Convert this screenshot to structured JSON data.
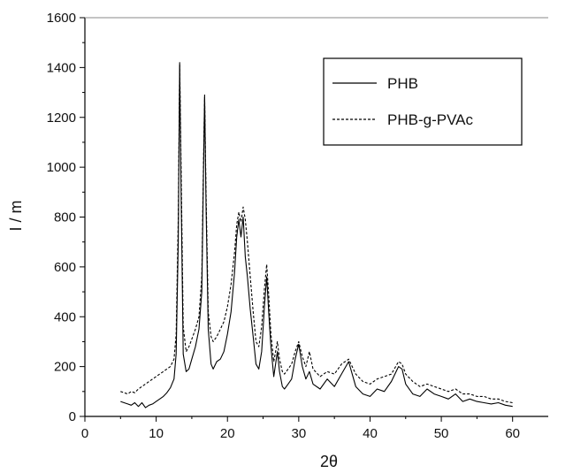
{
  "chart_data": {
    "type": "line",
    "xlabel": "2θ",
    "ylabel": "I / m",
    "xlim": [
      0,
      65
    ],
    "ylim": [
      0,
      1600
    ],
    "x_ticks": [
      0,
      10,
      20,
      30,
      40,
      50,
      60
    ],
    "y_ticks": [
      0,
      200,
      400,
      600,
      800,
      1000,
      1200,
      1400,
      1600
    ],
    "grid": false,
    "legend_position": "top-right",
    "series": [
      {
        "name": "PHB",
        "style": "solid",
        "color": "#000000",
        "points": [
          [
            5,
            60
          ],
          [
            5.5,
            55
          ],
          [
            6,
            50
          ],
          [
            6.5,
            45
          ],
          [
            7,
            55
          ],
          [
            7.5,
            40
          ],
          [
            8,
            55
          ],
          [
            8.5,
            35
          ],
          [
            9,
            45
          ],
          [
            9.5,
            50
          ],
          [
            10,
            60
          ],
          [
            10.5,
            70
          ],
          [
            11,
            80
          ],
          [
            11.5,
            95
          ],
          [
            12,
            115
          ],
          [
            12.5,
            150
          ],
          [
            12.8,
            250
          ],
          [
            13.1,
            700
          ],
          [
            13.3,
            1410
          ],
          [
            13.5,
            900
          ],
          [
            13.8,
            250
          ],
          [
            14.2,
            180
          ],
          [
            14.6,
            190
          ],
          [
            15,
            230
          ],
          [
            15.5,
            280
          ],
          [
            16,
            350
          ],
          [
            16.4,
            500
          ],
          [
            16.6,
            900
          ],
          [
            16.8,
            1290
          ],
          [
            17,
            850
          ],
          [
            17.3,
            350
          ],
          [
            17.7,
            210
          ],
          [
            18,
            190
          ],
          [
            18.5,
            220
          ],
          [
            19,
            230
          ],
          [
            19.5,
            260
          ],
          [
            20,
            330
          ],
          [
            20.5,
            420
          ],
          [
            21,
            580
          ],
          [
            21.3,
            720
          ],
          [
            21.6,
            790
          ],
          [
            21.9,
            720
          ],
          [
            22.2,
            800
          ],
          [
            22.5,
            640
          ],
          [
            22.8,
            560
          ],
          [
            23.2,
            430
          ],
          [
            23.6,
            320
          ],
          [
            24,
            210
          ],
          [
            24.4,
            190
          ],
          [
            24.8,
            260
          ],
          [
            25.2,
            450
          ],
          [
            25.5,
            560
          ],
          [
            25.8,
            410
          ],
          [
            26.1,
            280
          ],
          [
            26.5,
            160
          ],
          [
            27,
            260
          ],
          [
            27.3,
            180
          ],
          [
            27.7,
            120
          ],
          [
            28,
            110
          ],
          [
            28.5,
            130
          ],
          [
            29,
            150
          ],
          [
            29.5,
            230
          ],
          [
            30,
            290
          ],
          [
            30.5,
            200
          ],
          [
            31,
            150
          ],
          [
            31.5,
            180
          ],
          [
            32,
            130
          ],
          [
            33,
            110
          ],
          [
            34,
            150
          ],
          [
            35,
            120
          ],
          [
            36,
            170
          ],
          [
            37,
            220
          ],
          [
            38,
            120
          ],
          [
            39,
            90
          ],
          [
            40,
            80
          ],
          [
            41,
            110
          ],
          [
            42,
            100
          ],
          [
            43,
            140
          ],
          [
            44,
            200
          ],
          [
            44.5,
            190
          ],
          [
            45,
            130
          ],
          [
            46,
            90
          ],
          [
            47,
            80
          ],
          [
            48,
            110
          ],
          [
            49,
            90
          ],
          [
            50,
            80
          ],
          [
            51,
            70
          ],
          [
            52,
            90
          ],
          [
            53,
            60
          ],
          [
            54,
            70
          ],
          [
            55,
            60
          ],
          [
            56,
            55
          ],
          [
            57,
            50
          ],
          [
            58,
            55
          ],
          [
            59,
            45
          ],
          [
            60,
            40
          ]
        ]
      },
      {
        "name": "PHB-g-PVAc",
        "style": "dashed",
        "color": "#000000",
        "points": [
          [
            5,
            100
          ],
          [
            5.5,
            95
          ],
          [
            6,
            90
          ],
          [
            6.5,
            100
          ],
          [
            7,
            95
          ],
          [
            7.5,
            110
          ],
          [
            8,
            120
          ],
          [
            8.5,
            130
          ],
          [
            9,
            140
          ],
          [
            9.5,
            150
          ],
          [
            10,
            160
          ],
          [
            10.5,
            170
          ],
          [
            11,
            180
          ],
          [
            11.5,
            190
          ],
          [
            12,
            200
          ],
          [
            12.5,
            230
          ],
          [
            12.8,
            330
          ],
          [
            13.1,
            800
          ],
          [
            13.3,
            1420
          ],
          [
            13.5,
            1000
          ],
          [
            13.8,
            360
          ],
          [
            14.2,
            260
          ],
          [
            14.6,
            280
          ],
          [
            15,
            310
          ],
          [
            15.5,
            350
          ],
          [
            16,
            400
          ],
          [
            16.4,
            560
          ],
          [
            16.6,
            950
          ],
          [
            16.8,
            1280
          ],
          [
            17,
            900
          ],
          [
            17.3,
            420
          ],
          [
            17.7,
            320
          ],
          [
            18,
            300
          ],
          [
            18.5,
            320
          ],
          [
            19,
            350
          ],
          [
            19.5,
            380
          ],
          [
            20,
            440
          ],
          [
            20.5,
            530
          ],
          [
            21,
            660
          ],
          [
            21.3,
            770
          ],
          [
            21.6,
            820
          ],
          [
            21.9,
            780
          ],
          [
            22.2,
            840
          ],
          [
            22.5,
            790
          ],
          [
            22.8,
            700
          ],
          [
            23.2,
            560
          ],
          [
            23.6,
            420
          ],
          [
            24,
            300
          ],
          [
            24.4,
            280
          ],
          [
            24.8,
            360
          ],
          [
            25.2,
            520
          ],
          [
            25.5,
            610
          ],
          [
            25.8,
            480
          ],
          [
            26.1,
            330
          ],
          [
            26.5,
            220
          ],
          [
            27,
            300
          ],
          [
            27.3,
            230
          ],
          [
            27.7,
            180
          ],
          [
            28,
            170
          ],
          [
            28.5,
            190
          ],
          [
            29,
            210
          ],
          [
            29.5,
            260
          ],
          [
            30,
            300
          ],
          [
            30.5,
            240
          ],
          [
            31,
            200
          ],
          [
            31.5,
            260
          ],
          [
            32,
            190
          ],
          [
            33,
            160
          ],
          [
            34,
            180
          ],
          [
            35,
            170
          ],
          [
            36,
            210
          ],
          [
            37,
            230
          ],
          [
            38,
            170
          ],
          [
            39,
            140
          ],
          [
            40,
            130
          ],
          [
            41,
            150
          ],
          [
            42,
            160
          ],
          [
            43,
            170
          ],
          [
            44,
            220
          ],
          [
            44.5,
            210
          ],
          [
            45,
            170
          ],
          [
            46,
            140
          ],
          [
            47,
            120
          ],
          [
            48,
            130
          ],
          [
            49,
            120
          ],
          [
            50,
            110
          ],
          [
            51,
            100
          ],
          [
            52,
            110
          ],
          [
            53,
            90
          ],
          [
            54,
            90
          ],
          [
            55,
            80
          ],
          [
            56,
            80
          ],
          [
            57,
            70
          ],
          [
            58,
            70
          ],
          [
            59,
            60
          ],
          [
            60,
            55
          ]
        ]
      }
    ]
  }
}
